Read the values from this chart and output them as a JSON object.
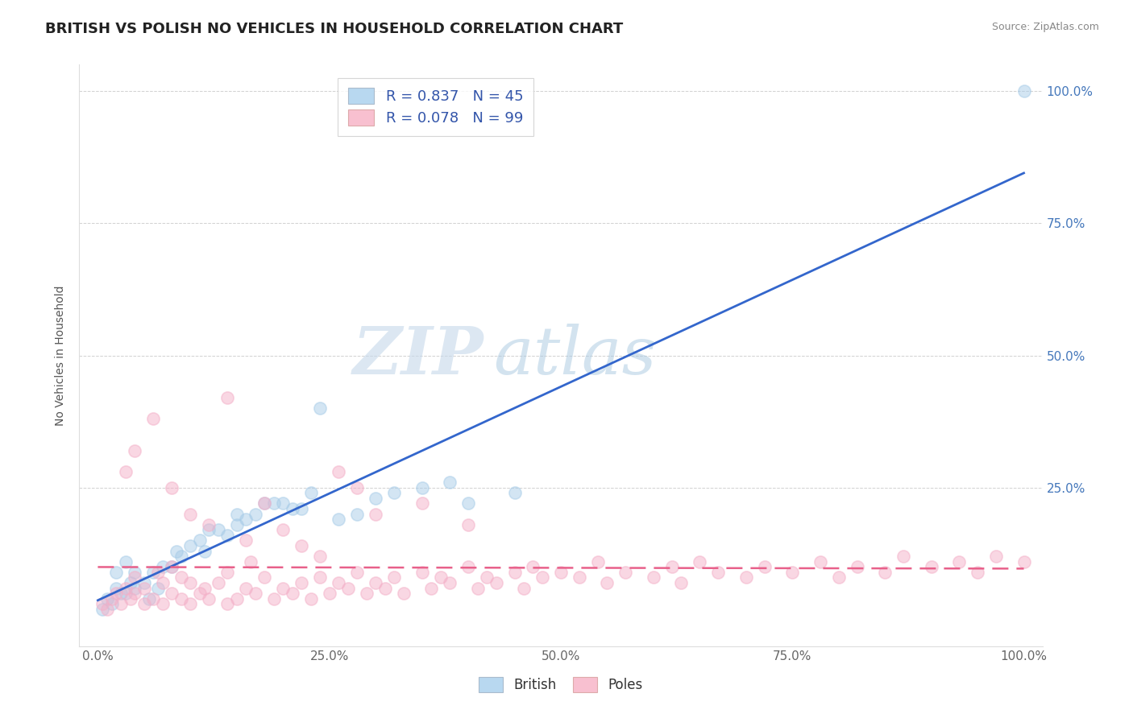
{
  "title": "BRITISH VS POLISH NO VEHICLES IN HOUSEHOLD CORRELATION CHART",
  "source": "Source: ZipAtlas.com",
  "ylabel": "No Vehicles in Household",
  "xlim": [
    -0.02,
    1.02
  ],
  "ylim": [
    -0.05,
    1.05
  ],
  "xtick_labels": [
    "0.0%",
    "25.0%",
    "50.0%",
    "75.0%",
    "100.0%"
  ],
  "xtick_positions": [
    0.0,
    0.25,
    0.5,
    0.75,
    1.0
  ],
  "ytick_labels": [
    "100.0%",
    "75.0%",
    "50.0%",
    "25.0%"
  ],
  "ytick_positions": [
    1.0,
    0.75,
    0.5,
    0.25
  ],
  "british_scatter_color": "#a8cce8",
  "poles_scatter_color": "#f4b0c8",
  "trend_british_color": "#3366CC",
  "trend_poles_color": "#E8608A",
  "trend_poles_dashed_color": "#E8608A",
  "legend_label_british": "R = 0.837   N = 45",
  "legend_label_poles": "R = 0.078   N = 99",
  "legend_color_british": "#b8d8f0",
  "legend_color_poles": "#f8c0d0",
  "watermark_zip": "ZIP",
  "watermark_atlas": "atlas",
  "british_x": [
    0.005,
    0.01,
    0.015,
    0.02,
    0.025,
    0.02,
    0.03,
    0.035,
    0.03,
    0.04,
    0.04,
    0.05,
    0.055,
    0.06,
    0.065,
    0.07,
    0.08,
    0.085,
    0.09,
    0.1,
    0.11,
    0.115,
    0.12,
    0.13,
    0.14,
    0.15,
    0.16,
    0.17,
    0.19,
    0.2,
    0.21,
    0.23,
    0.24,
    0.26,
    0.15,
    0.18,
    0.22,
    0.28,
    0.3,
    0.32,
    0.35,
    0.38,
    0.4,
    0.45,
    1.0
  ],
  "british_y": [
    0.02,
    0.04,
    0.03,
    0.06,
    0.05,
    0.09,
    0.05,
    0.07,
    0.11,
    0.06,
    0.09,
    0.07,
    0.04,
    0.09,
    0.06,
    0.1,
    0.1,
    0.13,
    0.12,
    0.14,
    0.15,
    0.13,
    0.17,
    0.17,
    0.16,
    0.18,
    0.19,
    0.2,
    0.22,
    0.22,
    0.21,
    0.24,
    0.4,
    0.19,
    0.2,
    0.22,
    0.21,
    0.2,
    0.23,
    0.24,
    0.25,
    0.26,
    0.22,
    0.24,
    1.0
  ],
  "poles_x": [
    0.005,
    0.01,
    0.015,
    0.02,
    0.025,
    0.03,
    0.035,
    0.04,
    0.04,
    0.05,
    0.05,
    0.06,
    0.065,
    0.07,
    0.07,
    0.08,
    0.08,
    0.09,
    0.09,
    0.1,
    0.1,
    0.11,
    0.115,
    0.12,
    0.13,
    0.14,
    0.14,
    0.15,
    0.16,
    0.165,
    0.17,
    0.18,
    0.19,
    0.2,
    0.21,
    0.22,
    0.23,
    0.24,
    0.25,
    0.26,
    0.27,
    0.28,
    0.29,
    0.3,
    0.31,
    0.32,
    0.33,
    0.35,
    0.36,
    0.37,
    0.38,
    0.4,
    0.41,
    0.42,
    0.43,
    0.45,
    0.46,
    0.47,
    0.48,
    0.5,
    0.52,
    0.54,
    0.55,
    0.57,
    0.6,
    0.62,
    0.63,
    0.65,
    0.67,
    0.7,
    0.72,
    0.75,
    0.78,
    0.8,
    0.82,
    0.85,
    0.87,
    0.9,
    0.93,
    0.95,
    0.97,
    1.0,
    0.03,
    0.04,
    0.06,
    0.08,
    0.1,
    0.12,
    0.14,
    0.16,
    0.18,
    0.2,
    0.22,
    0.24,
    0.26,
    0.28,
    0.3,
    0.35,
    0.4
  ],
  "poles_y": [
    0.03,
    0.02,
    0.04,
    0.05,
    0.03,
    0.06,
    0.04,
    0.05,
    0.08,
    0.03,
    0.06,
    0.04,
    0.09,
    0.03,
    0.07,
    0.05,
    0.1,
    0.04,
    0.08,
    0.03,
    0.07,
    0.05,
    0.06,
    0.04,
    0.07,
    0.03,
    0.09,
    0.04,
    0.06,
    0.11,
    0.05,
    0.08,
    0.04,
    0.06,
    0.05,
    0.07,
    0.04,
    0.08,
    0.05,
    0.07,
    0.06,
    0.09,
    0.05,
    0.07,
    0.06,
    0.08,
    0.05,
    0.09,
    0.06,
    0.08,
    0.07,
    0.1,
    0.06,
    0.08,
    0.07,
    0.09,
    0.06,
    0.1,
    0.08,
    0.09,
    0.08,
    0.11,
    0.07,
    0.09,
    0.08,
    0.1,
    0.07,
    0.11,
    0.09,
    0.08,
    0.1,
    0.09,
    0.11,
    0.08,
    0.1,
    0.09,
    0.12,
    0.1,
    0.11,
    0.09,
    0.12,
    0.11,
    0.28,
    0.32,
    0.38,
    0.25,
    0.2,
    0.18,
    0.42,
    0.15,
    0.22,
    0.17,
    0.14,
    0.12,
    0.28,
    0.25,
    0.2,
    0.22,
    0.18
  ],
  "title_fontsize": 13,
  "axis_label_fontsize": 10,
  "tick_fontsize": 11,
  "legend_fontsize": 13,
  "source_fontsize": 9
}
